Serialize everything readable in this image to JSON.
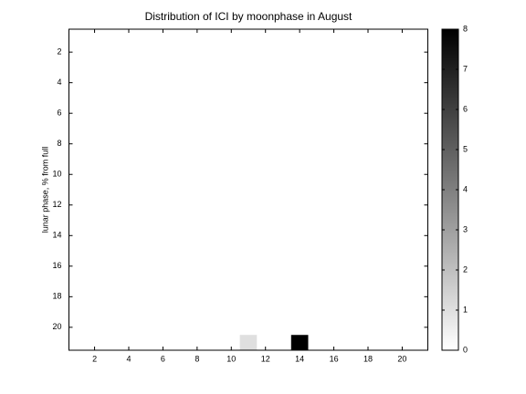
{
  "chart_data": {
    "type": "heatmap",
    "title": "Distribution of ICI by moonphase in August",
    "y_label": "lunar phase, % from full",
    "x": [
      1,
      2,
      3,
      4,
      5,
      6,
      7,
      8,
      9,
      10,
      11,
      12,
      13,
      14,
      15,
      16,
      17,
      18,
      19,
      20,
      21
    ],
    "y": [
      1,
      2,
      3,
      4,
      5,
      6,
      7,
      8,
      9,
      10,
      11,
      12,
      13,
      14,
      15,
      16,
      17,
      18,
      19,
      20,
      21
    ],
    "z": [
      [
        0,
        0,
        0,
        0,
        0,
        0,
        0,
        0,
        0,
        0,
        0,
        0,
        0,
        0,
        0,
        0,
        0,
        0,
        0,
        0,
        0
      ],
      [
        0,
        0,
        0,
        0,
        0,
        0,
        0,
        0,
        0,
        0,
        0,
        0,
        0,
        0,
        0,
        0,
        0,
        0,
        0,
        0,
        0
      ],
      [
        0,
        0,
        0,
        0,
        0,
        0,
        0,
        0,
        0,
        0,
        0,
        0,
        0,
        0,
        0,
        0,
        0,
        0,
        0,
        0,
        0
      ],
      [
        0,
        0,
        0,
        0,
        0,
        0,
        0,
        0,
        0,
        0,
        0,
        0,
        0,
        0,
        0,
        0,
        0,
        0,
        0,
        0,
        0
      ],
      [
        0,
        0,
        0,
        0,
        0,
        0,
        0,
        0,
        0,
        0,
        0,
        0,
        0,
        0,
        0,
        0,
        0,
        0,
        0,
        0,
        0
      ],
      [
        0,
        0,
        0,
        0,
        0,
        0,
        0,
        0,
        0,
        0,
        0,
        0,
        0,
        0,
        0,
        0,
        0,
        0,
        0,
        0,
        0
      ],
      [
        0,
        0,
        0,
        0,
        0,
        0,
        0,
        0,
        0,
        0,
        0,
        0,
        0,
        0,
        0,
        0,
        0,
        0,
        0,
        0,
        0
      ],
      [
        0,
        0,
        0,
        0,
        0,
        0,
        0,
        0,
        0,
        0,
        0,
        0,
        0,
        0,
        0,
        0,
        0,
        0,
        0,
        0,
        0
      ],
      [
        0,
        0,
        0,
        0,
        0,
        0,
        0,
        0,
        0,
        0,
        0,
        0,
        0,
        0,
        0,
        0,
        0,
        0,
        0,
        0,
        0
      ],
      [
        0,
        0,
        0,
        0,
        0,
        0,
        0,
        0,
        0,
        0,
        0,
        0,
        0,
        0,
        0,
        0,
        0,
        0,
        0,
        0,
        0
      ],
      [
        0,
        0,
        0,
        0,
        0,
        0,
        0,
        0,
        0,
        0,
        0,
        0,
        0,
        0,
        0,
        0,
        0,
        0,
        0,
        0,
        0
      ],
      [
        0,
        0,
        0,
        0,
        0,
        0,
        0,
        0,
        0,
        0,
        0,
        0,
        0,
        0,
        0,
        0,
        0,
        0,
        0,
        0,
        0
      ],
      [
        0,
        0,
        0,
        0,
        0,
        0,
        0,
        0,
        0,
        0,
        0,
        0,
        0,
        0,
        0,
        0,
        0,
        0,
        0,
        0,
        0
      ],
      [
        0,
        0,
        0,
        0,
        0,
        0,
        0,
        0,
        0,
        0,
        0,
        0,
        0,
        0,
        0,
        0,
        0,
        0,
        0,
        0,
        0
      ],
      [
        0,
        0,
        0,
        0,
        0,
        0,
        0,
        0,
        0,
        0,
        0,
        0,
        0,
        0,
        0,
        0,
        0,
        0,
        0,
        0,
        0
      ],
      [
        0,
        0,
        0,
        0,
        0,
        0,
        0,
        0,
        0,
        0,
        0,
        0,
        0,
        0,
        0,
        0,
        0,
        0,
        0,
        0,
        0
      ],
      [
        0,
        0,
        0,
        0,
        0,
        0,
        0,
        0,
        0,
        0,
        0,
        0,
        0,
        0,
        0,
        0,
        0,
        0,
        0,
        0,
        0
      ],
      [
        0,
        0,
        0,
        0,
        0,
        0,
        0,
        0,
        0,
        0,
        0,
        0,
        0,
        0,
        0,
        0,
        0,
        0,
        0,
        0,
        0
      ],
      [
        0,
        0,
        0,
        0,
        0,
        0,
        0,
        0,
        0,
        0,
        0,
        0,
        0,
        0,
        0,
        0,
        0,
        0,
        0,
        0,
        0
      ],
      [
        0,
        0,
        0,
        0,
        0,
        0,
        0,
        0,
        0,
        0,
        0,
        0,
        0,
        0,
        0,
        0,
        0,
        0,
        0,
        0,
        0
      ],
      [
        0,
        0,
        0,
        0,
        0,
        0,
        0,
        0,
        0,
        0,
        1,
        0,
        0,
        8,
        0,
        0,
        0,
        0,
        0,
        0,
        0
      ]
    ],
    "xlim": [
      0.5,
      21.5
    ],
    "ylim": [
      0.5,
      21.5
    ],
    "y_reversed": true,
    "xticks": [
      2,
      4,
      6,
      8,
      10,
      12,
      14,
      16,
      18,
      20
    ],
    "yticks": [
      2,
      4,
      6,
      8,
      10,
      12,
      14,
      16,
      18,
      20
    ],
    "clim": [
      0,
      8
    ],
    "cticks": [
      0,
      1,
      2,
      3,
      4,
      5,
      6,
      7,
      8
    ],
    "colormap": [
      "#ffffff",
      "#000000"
    ]
  }
}
